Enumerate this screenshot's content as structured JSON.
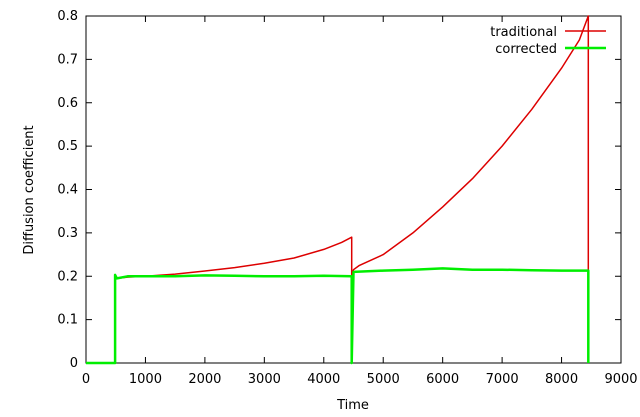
{
  "chart_data": {
    "type": "line",
    "xlabel": "Time",
    "ylabel": "Diffusion coefficient",
    "xlim": [
      0,
      9000
    ],
    "ylim": [
      0,
      0.8
    ],
    "x_ticks": [
      "0",
      "1000",
      "2000",
      "3000",
      "4000",
      "5000",
      "6000",
      "7000",
      "8000",
      "9000"
    ],
    "y_ticks": [
      "0",
      "0.1",
      "0.2",
      "0.3",
      "0.4",
      "0.5",
      "0.6",
      "0.7",
      "0.8"
    ],
    "grid": false,
    "legend_position": "top-right",
    "series": [
      {
        "name": "traditional",
        "color": "#dd0000",
        "x": [
          0,
          490,
          490,
          520,
          700,
          1000,
          1500,
          2000,
          2500,
          3000,
          3500,
          4000,
          4300,
          4470,
          4470,
          4500,
          4600,
          5000,
          5500,
          6000,
          6500,
          7000,
          7500,
          8000,
          8300,
          8450,
          8450
        ],
        "y": [
          0,
          0,
          0.2,
          0.195,
          0.198,
          0.2,
          0.205,
          0.212,
          0.22,
          0.23,
          0.242,
          0.262,
          0.278,
          0.29,
          0.2,
          0.215,
          0.225,
          0.25,
          0.3,
          0.36,
          0.425,
          0.5,
          0.585,
          0.68,
          0.745,
          0.8,
          0
        ]
      },
      {
        "name": "corrected",
        "color": "#00ee00",
        "x": [
          0,
          490,
          490,
          520,
          700,
          1000,
          1500,
          2000,
          2500,
          3000,
          3500,
          4000,
          4470,
          4470,
          4500,
          5000,
          5500,
          6000,
          6500,
          7000,
          7500,
          8000,
          8450,
          8450
        ],
        "y": [
          0,
          0,
          0.203,
          0.195,
          0.2,
          0.2,
          0.2,
          0.202,
          0.201,
          0.2,
          0.2,
          0.201,
          0.2,
          0,
          0.21,
          0.213,
          0.215,
          0.218,
          0.215,
          0.215,
          0.214,
          0.213,
          0.213,
          0
        ]
      }
    ]
  }
}
